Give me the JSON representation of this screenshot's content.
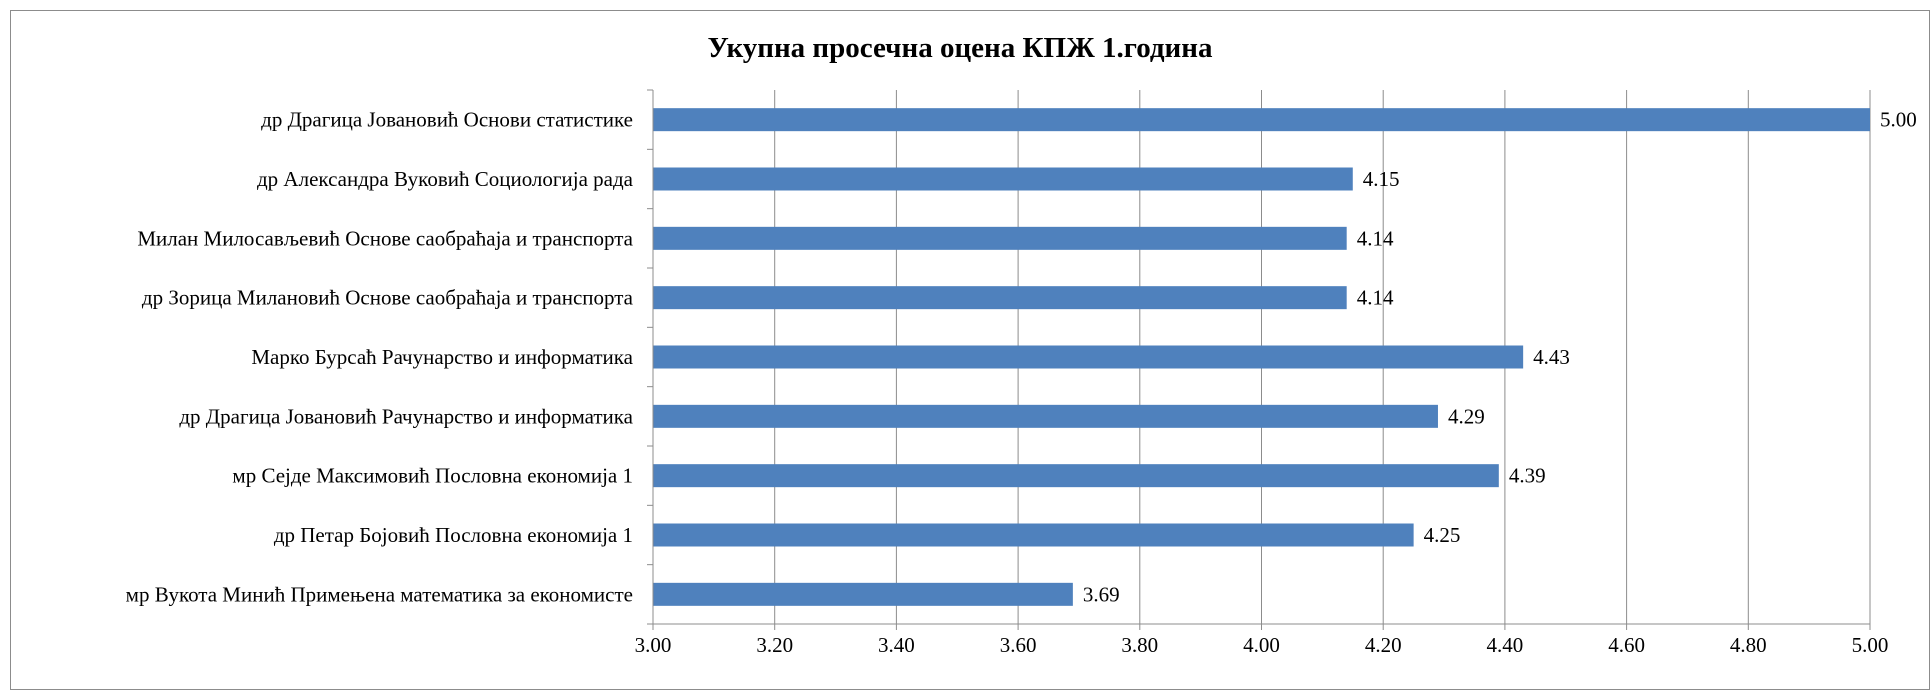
{
  "chart_data": {
    "type": "bar",
    "orientation": "horizontal",
    "title": "Укупна просечна оцена КПЖ 1.година",
    "categories": [
      "др Драгица Јовановић Основи статистике",
      "др Александра Вуковић Социологија рада",
      "Милан Милосављевић Основе саобраћаја и транспорта",
      "др Зорица Милановић Основе саобраћаја и транспорта",
      "Марко Бурсаћ Рачунарство и информатика",
      "др Драгица Јовановић Рачунарство и информатика",
      "мр Сејде Максимовић Пословна економија 1",
      "др Петар Бојовић Пословна економија 1",
      "мр Вукота Минић Примењена математика за економисте"
    ],
    "values": [
      5.0,
      4.15,
      4.14,
      4.14,
      4.43,
      4.29,
      4.39,
      4.25,
      3.69
    ],
    "data_labels": [
      "5.00",
      "4.15",
      "4.14",
      "4.14",
      "4.43",
      "4.29",
      "4.39",
      "4.25",
      "3.69"
    ],
    "xlim": [
      3.0,
      5.0
    ],
    "x_ticks": [
      3.0,
      3.2,
      3.4,
      3.6,
      3.8,
      4.0,
      4.2,
      4.4,
      4.6,
      4.8,
      5.0
    ],
    "x_tick_labels": [
      "3.00",
      "3.20",
      "3.40",
      "3.60",
      "3.80",
      "4.00",
      "4.20",
      "4.40",
      "4.60",
      "4.80",
      "5.00"
    ],
    "xlabel": "",
    "ylabel": "",
    "grid": true,
    "legend": false,
    "bar_color": "#4f81bd",
    "grid_color": "#8c8c8c"
  }
}
